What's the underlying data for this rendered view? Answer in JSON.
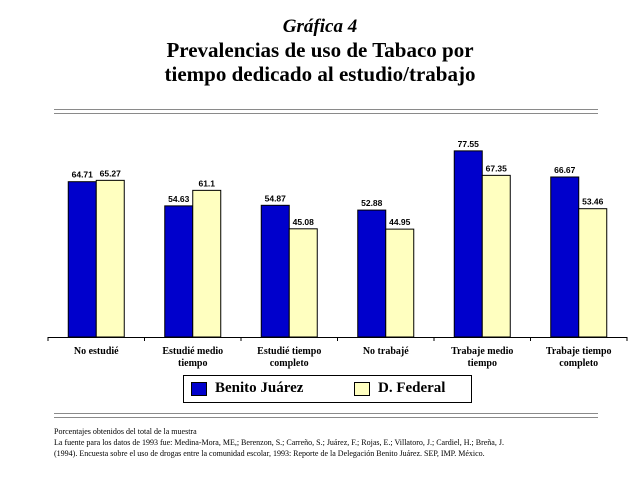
{
  "heading": {
    "kicker": "Gráfica 4",
    "title_line1": "Prevalencias de uso de Tabaco por",
    "title_line2": "tiempo dedicado al estudio/trabajo"
  },
  "colors": {
    "series1": "#0000cc",
    "series2": "#ffffc0",
    "axis": "#000000"
  },
  "chart_data": {
    "type": "bar",
    "categories": [
      [
        "No estudié"
      ],
      [
        "Estudié medio",
        "tiempo"
      ],
      [
        "Estudié tiempo",
        "completo"
      ],
      [
        "No trabajé"
      ],
      [
        "Trabaje medio",
        "tiempo"
      ],
      [
        "Trabaje tiempo",
        "completo"
      ]
    ],
    "series": [
      {
        "name": "Benito Juárez",
        "values": [
          64.71,
          54.63,
          54.87,
          52.88,
          77.55,
          66.67
        ],
        "labels": [
          "64.71",
          "54.63",
          "54.87",
          "52.88",
          "77.55",
          "66.67"
        ]
      },
      {
        "name": "D. Federal",
        "values": [
          65.27,
          61.1,
          45.08,
          44.95,
          67.35,
          53.46
        ],
        "labels": [
          "65.27",
          "61.1",
          "45.08",
          "44.95",
          "67.35",
          "53.46"
        ]
      }
    ],
    "ylim": [
      0,
      100
    ],
    "grid": false,
    "legend_position": "bottom"
  },
  "notes": {
    "line1": "Porcentajes obtenidos del total de la muestra",
    "line2": "La fuente para los datos de 1993 fue: Medina-Mora, ME,; Berenzon, S.; Carreño, S.; Juárez, F.; Rojas, E.; Villatoro, J.; Cardiel, H.; Breña, J.",
    "line3": "(1994). Encuesta sobre el uso de drogas entre la comunidad escolar, 1993: Reporte de la Delegación Benito Juárez. SEP, IMP. México."
  }
}
